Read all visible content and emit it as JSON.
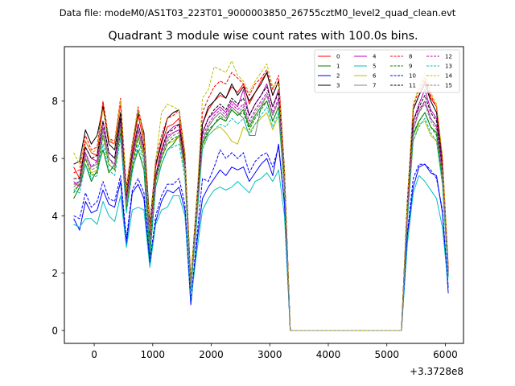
{
  "chart_data": {
    "type": "line",
    "suptitle": "Data file: modeM0/AS1T03_223T01_9000003850_26755cztM0_level2_quad_clean.evt",
    "title": "Quadrant 3 module wise count rates with 100.0s bins.",
    "xlabel": "",
    "ylabel": "",
    "x_offset_label": "+3.3728e8",
    "xlim": [
      -510,
      6310
    ],
    "ylim": [
      -0.45,
      9.9
    ],
    "x_ticks": [
      0,
      1000,
      2000,
      3000,
      4000,
      5000,
      6000
    ],
    "y_ticks": [
      0,
      2,
      4,
      6,
      8
    ],
    "legend_position": "top-right",
    "x": [
      -350,
      -250,
      -150,
      -50,
      50,
      150,
      250,
      350,
      450,
      550,
      650,
      750,
      850,
      950,
      1050,
      1150,
      1250,
      1350,
      1450,
      1550,
      1650,
      1750,
      1850,
      1950,
      2050,
      2150,
      2250,
      2350,
      2450,
      2550,
      2650,
      2750,
      2850,
      2950,
      3050,
      3150,
      3250,
      3350,
      3450,
      3550,
      3650,
      3750,
      3850,
      3950,
      4050,
      4150,
      4250,
      4350,
      4450,
      4550,
      4650,
      4750,
      4850,
      4950,
      5050,
      5150,
      5250,
      5350,
      5450,
      5550,
      5650,
      5750,
      5850,
      5950,
      6050
    ],
    "series": [
      {
        "name": "0",
        "color": "#ff0000",
        "dash": "solid",
        "values": [
          5.7,
          5.3,
          6.6,
          6.2,
          6.1,
          7.9,
          6.6,
          6.5,
          7.9,
          4.8,
          6.3,
          7.5,
          6.6,
          3.4,
          5.7,
          6.5,
          7.1,
          7.2,
          7.4,
          5.9,
          1.6,
          4.2,
          7.2,
          7.7,
          8.0,
          8.2,
          8.1,
          8.5,
          8.3,
          8.6,
          7.9,
          8.3,
          8.7,
          9.0,
          8.2,
          8.7,
          5.5,
          0,
          0,
          0,
          0,
          0,
          0,
          0,
          0,
          0,
          0,
          0,
          0,
          0,
          0,
          0,
          0,
          0,
          0,
          0,
          0,
          4.4,
          7.7,
          8.2,
          8.7,
          8.1,
          7.8,
          6.0,
          2.2
        ]
      },
      {
        "name": "1",
        "color": "#008000",
        "dash": "solid",
        "values": [
          4.6,
          5.0,
          5.8,
          5.2,
          5.6,
          6.3,
          5.5,
          5.8,
          6.9,
          4.2,
          5.6,
          6.3,
          5.6,
          2.6,
          5.0,
          5.8,
          6.3,
          6.5,
          6.8,
          5.5,
          1.4,
          3.8,
          6.5,
          6.9,
          7.2,
          7.4,
          7.3,
          7.7,
          7.5,
          7.7,
          7.1,
          7.5,
          7.8,
          8.0,
          7.3,
          7.8,
          5.0,
          0,
          0,
          0,
          0,
          0,
          0,
          0,
          0,
          0,
          0,
          0,
          0,
          0,
          0,
          0,
          0,
          0,
          0,
          0,
          0,
          4.0,
          6.8,
          7.3,
          7.6,
          7.1,
          6.9,
          5.3,
          2.0
        ]
      },
      {
        "name": "2",
        "color": "#0000ff",
        "dash": "solid",
        "values": [
          3.9,
          3.5,
          4.5,
          4.1,
          4.2,
          4.9,
          4.4,
          4.3,
          5.2,
          3.0,
          4.8,
          5.1,
          4.6,
          2.3,
          3.8,
          4.5,
          4.9,
          4.8,
          5.0,
          4.2,
          0.9,
          3.0,
          4.6,
          5.0,
          5.3,
          5.6,
          5.4,
          5.7,
          5.6,
          5.7,
          5.2,
          5.5,
          5.8,
          6.0,
          5.4,
          6.5,
          4.4,
          0,
          0,
          0,
          0,
          0,
          0,
          0,
          0,
          0,
          0,
          0,
          0,
          0,
          0,
          0,
          0,
          0,
          0,
          0,
          0,
          3.3,
          5.0,
          5.7,
          5.8,
          5.5,
          5.4,
          4.1,
          1.3
        ]
      },
      {
        "name": "3",
        "color": "#000000",
        "dash": "solid",
        "values": [
          5.8,
          5.9,
          7.0,
          6.5,
          6.8,
          7.8,
          6.5,
          6.3,
          7.6,
          4.9,
          6.5,
          7.6,
          6.9,
          3.7,
          5.8,
          6.6,
          7.4,
          7.6,
          7.7,
          6.1,
          1.7,
          4.5,
          7.2,
          7.8,
          8.0,
          8.3,
          8.1,
          8.6,
          8.2,
          8.5,
          8.0,
          8.3,
          8.6,
          9.0,
          8.2,
          8.7,
          5.6,
          0,
          0,
          0,
          0,
          0,
          0,
          0,
          0,
          0,
          0,
          0,
          0,
          0,
          0,
          0,
          0,
          0,
          0,
          0,
          0,
          4.5,
          7.7,
          8.2,
          8.6,
          8.0,
          7.6,
          5.9,
          2.1
        ]
      },
      {
        "name": "4",
        "color": "#bf00bf",
        "dash": "solid",
        "values": [
          5.1,
          5.2,
          6.4,
          6.0,
          5.9,
          7.3,
          6.2,
          6.0,
          7.4,
          4.6,
          6.1,
          7.2,
          6.4,
          3.1,
          5.4,
          6.3,
          6.9,
          7.1,
          7.2,
          5.8,
          1.6,
          4.1,
          6.9,
          7.4,
          7.6,
          7.8,
          7.6,
          8.0,
          7.8,
          8.4,
          7.5,
          7.9,
          8.2,
          8.6,
          7.8,
          8.4,
          5.3,
          0,
          0,
          0,
          0,
          0,
          0,
          0,
          0,
          0,
          0,
          0,
          0,
          0,
          0,
          0,
          0,
          0,
          0,
          0,
          0,
          4.2,
          7.3,
          7.9,
          8.4,
          7.7,
          7.4,
          5.7,
          2.1
        ]
      },
      {
        "name": "5",
        "color": "#00bfbf",
        "dash": "solid",
        "values": [
          3.7,
          3.6,
          3.9,
          3.9,
          3.7,
          4.5,
          4.0,
          3.8,
          4.7,
          2.9,
          4.2,
          4.3,
          4.2,
          2.2,
          3.7,
          4.2,
          4.3,
          4.7,
          4.7,
          4.0,
          1.0,
          2.7,
          4.2,
          4.6,
          4.9,
          5.0,
          4.9,
          5.0,
          5.2,
          5.0,
          4.8,
          5.2,
          5.3,
          5.5,
          5.2,
          5.6,
          4.0,
          0,
          0,
          0,
          0,
          0,
          0,
          0,
          0,
          0,
          0,
          0,
          0,
          0,
          0,
          0,
          0,
          0,
          0,
          0,
          0,
          3.0,
          4.8,
          5.4,
          5.2,
          4.9,
          4.6,
          3.6,
          1.5
        ]
      },
      {
        "name": "6",
        "color": "#bfbf00",
        "dash": "solid",
        "values": [
          4.9,
          5.1,
          6.0,
          5.5,
          5.6,
          6.8,
          5.8,
          5.6,
          7.0,
          4.3,
          5.8,
          6.8,
          6.1,
          3.0,
          5.2,
          6.0,
          6.5,
          6.6,
          6.8,
          5.5,
          1.5,
          3.9,
          6.4,
          6.8,
          7.0,
          7.1,
          6.9,
          6.6,
          6.5,
          7.1,
          6.9,
          7.2,
          7.4,
          7.6,
          7.0,
          7.5,
          4.9,
          0,
          0,
          0,
          0,
          0,
          0,
          0,
          0,
          0,
          0,
          0,
          0,
          0,
          0,
          0,
          0,
          0,
          0,
          0,
          0,
          3.9,
          6.6,
          7.2,
          7.3,
          6.8,
          6.6,
          5.1,
          2.0
        ]
      },
      {
        "name": "7",
        "color": "#808080",
        "dash": "solid",
        "values": [
          5.0,
          5.2,
          6.2,
          5.7,
          5.8,
          7.0,
          6.0,
          5.8,
          7.2,
          4.5,
          6.0,
          7.0,
          6.2,
          3.1,
          5.3,
          6.1,
          6.7,
          6.9,
          7.0,
          5.7,
          1.5,
          4.0,
          6.6,
          7.1,
          7.4,
          7.6,
          7.4,
          7.8,
          7.6,
          7.4,
          6.8,
          6.8,
          7.8,
          8.2,
          7.5,
          8.0,
          5.2,
          0,
          0,
          0,
          0,
          0,
          0,
          0,
          0,
          0,
          0,
          0,
          0,
          0,
          0,
          0,
          0,
          0,
          0,
          0,
          0,
          4.1,
          7.0,
          7.6,
          8.0,
          7.4,
          7.1,
          5.5,
          2.0
        ]
      },
      {
        "name": "8",
        "color": "#ff0000",
        "dash": "dashed",
        "values": [
          5.5,
          5.6,
          6.8,
          6.3,
          6.4,
          8.0,
          6.7,
          6.6,
          8.1,
          5.0,
          6.5,
          7.8,
          6.8,
          3.6,
          6.0,
          6.8,
          7.4,
          7.5,
          7.7,
          6.2,
          1.7,
          4.5,
          7.6,
          8.1,
          8.5,
          8.7,
          8.6,
          9.0,
          8.8,
          8.6,
          8.2,
          8.6,
          8.8,
          9.1,
          8.4,
          8.9,
          5.6,
          0,
          0,
          0,
          0,
          0,
          0,
          0,
          0,
          0,
          0,
          0,
          0,
          0,
          0,
          0,
          0,
          0,
          0,
          0,
          0,
          4.5,
          7.8,
          8.4,
          8.8,
          8.2,
          7.8,
          6.0,
          2.2
        ]
      },
      {
        "name": "9",
        "color": "#008000",
        "dash": "dashed",
        "values": [
          4.8,
          5.1,
          6.0,
          5.4,
          5.5,
          6.8,
          5.8,
          5.6,
          6.9,
          4.2,
          5.7,
          6.7,
          6.0,
          2.9,
          5.2,
          6.0,
          6.5,
          6.7,
          6.8,
          5.6,
          1.5,
          4.0,
          6.5,
          7.0,
          7.2,
          7.5,
          7.3,
          7.7,
          7.5,
          7.6,
          7.0,
          7.4,
          7.7,
          8.0,
          7.3,
          7.8,
          5.0,
          0,
          0,
          0,
          0,
          0,
          0,
          0,
          0,
          0,
          0,
          0,
          0,
          0,
          0,
          0,
          0,
          0,
          0,
          0,
          0,
          3.9,
          6.9,
          7.3,
          7.6,
          7.1,
          6.8,
          5.2,
          1.9
        ]
      },
      {
        "name": "10",
        "color": "#0000ff",
        "dash": "dashed",
        "values": [
          4.0,
          3.9,
          4.8,
          4.3,
          4.5,
          5.2,
          4.6,
          4.5,
          5.4,
          3.2,
          4.9,
          5.3,
          4.8,
          2.4,
          4.0,
          4.7,
          5.1,
          5.1,
          5.3,
          4.4,
          1.0,
          3.2,
          5.3,
          5.2,
          5.7,
          6.3,
          6.0,
          6.2,
          6.0,
          6.2,
          5.5,
          5.9,
          6.1,
          6.2,
          5.7,
          6.4,
          4.5,
          0,
          0,
          0,
          0,
          0,
          0,
          0,
          0,
          0,
          0,
          0,
          0,
          0,
          0,
          0,
          0,
          0,
          0,
          0,
          0,
          3.4,
          5.3,
          5.8,
          5.8,
          5.6,
          5.3,
          4.2,
          1.5
        ]
      },
      {
        "name": "11",
        "color": "#000000",
        "dash": "dashed",
        "values": [
          5.3,
          5.3,
          6.4,
          6.0,
          6.1,
          7.3,
          6.2,
          6.0,
          7.4,
          4.6,
          6.1,
          7.2,
          6.4,
          3.3,
          5.4,
          6.3,
          6.9,
          7.0,
          7.2,
          5.8,
          1.6,
          4.2,
          6.9,
          7.4,
          7.7,
          7.9,
          7.7,
          8.1,
          7.9,
          8.1,
          7.5,
          7.9,
          8.2,
          8.5,
          7.8,
          8.3,
          5.3,
          0,
          0,
          0,
          0,
          0,
          0,
          0,
          0,
          0,
          0,
          0,
          0,
          0,
          0,
          0,
          0,
          0,
          0,
          0,
          0,
          4.2,
          7.3,
          7.8,
          8.2,
          7.6,
          7.3,
          5.6,
          2.0
        ]
      },
      {
        "name": "12",
        "color": "#bf00bf",
        "dash": "dashed",
        "values": [
          5.2,
          5.0,
          6.2,
          5.7,
          5.9,
          7.1,
          6.0,
          5.8,
          7.2,
          4.5,
          6.0,
          7.0,
          6.3,
          3.1,
          5.3,
          6.2,
          6.8,
          6.9,
          7.0,
          5.7,
          1.5,
          4.1,
          6.8,
          7.2,
          7.5,
          7.7,
          7.5,
          7.9,
          7.7,
          7.9,
          7.3,
          7.7,
          8.0,
          8.3,
          7.6,
          8.1,
          5.2,
          0,
          0,
          0,
          0,
          0,
          0,
          0,
          0,
          0,
          0,
          0,
          0,
          0,
          0,
          0,
          0,
          0,
          0,
          0,
          0,
          4.1,
          7.1,
          7.7,
          8.0,
          7.4,
          7.1,
          5.5,
          2.0
        ]
      },
      {
        "name": "13",
        "color": "#00bfbf",
        "dash": "dashed",
        "values": [
          4.9,
          4.8,
          5.8,
          5.3,
          5.4,
          6.5,
          5.6,
          5.4,
          6.7,
          4.1,
          5.5,
          6.5,
          5.8,
          2.8,
          5.0,
          5.8,
          6.3,
          6.4,
          6.5,
          5.3,
          1.4,
          3.8,
          6.3,
          6.8,
          7.0,
          7.2,
          7.1,
          7.4,
          7.2,
          7.4,
          6.8,
          7.2,
          7.5,
          7.8,
          7.1,
          7.6,
          4.9,
          0,
          0,
          0,
          0,
          0,
          0,
          0,
          0,
          0,
          0,
          0,
          0,
          0,
          0,
          0,
          0,
          0,
          0,
          0,
          0,
          3.8,
          6.6,
          7.1,
          7.4,
          6.9,
          6.6,
          5.1,
          1.8
        ]
      },
      {
        "name": "14",
        "color": "#bfbf00",
        "dash": "dashed",
        "values": [
          6.2,
          5.8,
          6.6,
          6.2,
          6.3,
          7.7,
          6.7,
          6.5,
          8.0,
          4.9,
          6.5,
          7.7,
          6.7,
          3.5,
          5.9,
          7.6,
          7.9,
          7.8,
          7.7,
          6.1,
          1.7,
          4.4,
          8.1,
          8.4,
          9.2,
          9.1,
          9.0,
          9.4,
          8.9,
          8.7,
          8.3,
          8.7,
          9.0,
          9.3,
          8.5,
          8.6,
          5.6,
          0,
          0,
          0,
          0,
          0,
          0,
          0,
          0,
          0,
          0,
          0,
          0,
          0,
          0,
          0,
          0,
          0,
          0,
          0,
          0,
          4.5,
          7.9,
          8.5,
          9.0,
          8.3,
          7.9,
          6.1,
          2.2
        ]
      },
      {
        "name": "15",
        "color": "#808080",
        "dash": "dashed",
        "values": [
          5.1,
          5.1,
          6.1,
          5.6,
          5.7,
          7.0,
          6.0,
          5.7,
          7.1,
          4.4,
          5.9,
          6.9,
          6.2,
          3.1,
          5.3,
          6.1,
          6.6,
          6.8,
          6.9,
          5.6,
          1.5,
          4.0,
          6.7,
          7.1,
          7.4,
          7.6,
          7.4,
          7.8,
          7.6,
          7.8,
          7.2,
          7.6,
          7.9,
          8.2,
          7.5,
          8.0,
          5.1,
          0,
          0,
          0,
          0,
          0,
          0,
          0,
          0,
          0,
          0,
          0,
          0,
          0,
          0,
          0,
          0,
          0,
          0,
          0,
          0,
          4.0,
          7.0,
          7.6,
          7.9,
          7.3,
          7.0,
          5.4,
          2.0
        ]
      }
    ]
  }
}
